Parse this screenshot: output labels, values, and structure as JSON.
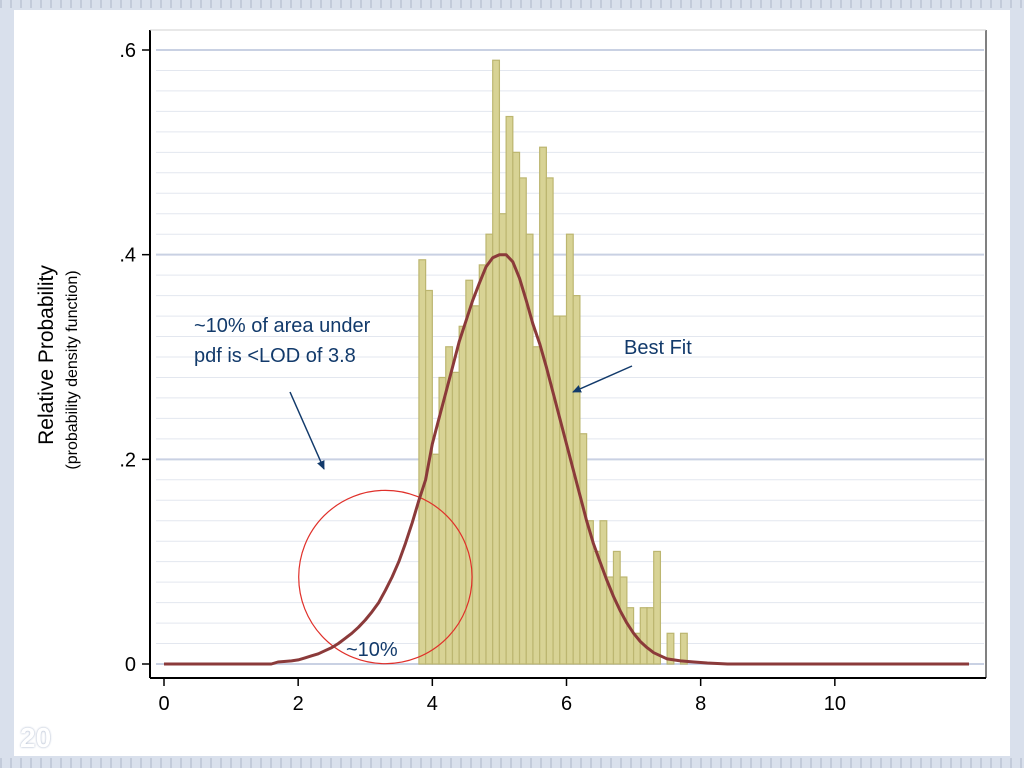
{
  "slide": {
    "number": "20"
  },
  "chart_data": {
    "type": "bar",
    "ylabel": "Relative Probability",
    "ylabel_sub": "(probability density function)",
    "xlim": [
      0,
      12
    ],
    "ylim": [
      0,
      0.6
    ],
    "x_ticks": [
      {
        "value": 0,
        "label": "0"
      },
      {
        "value": 2,
        "label": "2"
      },
      {
        "value": 4,
        "label": "4"
      },
      {
        "value": 6,
        "label": "6"
      },
      {
        "value": 8,
        "label": "8"
      },
      {
        "value": 10,
        "label": "10"
      }
    ],
    "y_ticks": [
      {
        "value": 0,
        "label": "0"
      },
      {
        "value": 0.2,
        "label": ".2"
      },
      {
        "value": 0.4,
        "label": ".4"
      },
      {
        "value": 0.6,
        "label": ".6"
      }
    ],
    "grid": true,
    "colors": {
      "bars": "#d8d395",
      "bar_edge": "#bcb670",
      "curve": "#8b3a3a",
      "circle": "#e0302a",
      "annotation": "#123a6b"
    },
    "histogram": {
      "bins": [
        {
          "x0": 3.8,
          "x1": 3.9,
          "y": 0.395
        },
        {
          "x0": 3.9,
          "x1": 4.0,
          "y": 0.365
        },
        {
          "x0": 4.0,
          "x1": 4.1,
          "y": 0.205
        },
        {
          "x0": 4.1,
          "x1": 4.2,
          "y": 0.28
        },
        {
          "x0": 4.2,
          "x1": 4.3,
          "y": 0.31
        },
        {
          "x0": 4.3,
          "x1": 4.4,
          "y": 0.285
        },
        {
          "x0": 4.4,
          "x1": 4.5,
          "y": 0.33
        },
        {
          "x0": 4.5,
          "x1": 4.6,
          "y": 0.375
        },
        {
          "x0": 4.6,
          "x1": 4.7,
          "y": 0.35
        },
        {
          "x0": 4.7,
          "x1": 4.8,
          "y": 0.39
        },
        {
          "x0": 4.8,
          "x1": 4.9,
          "y": 0.42
        },
        {
          "x0": 4.9,
          "x1": 5.0,
          "y": 0.59
        },
        {
          "x0": 5.0,
          "x1": 5.1,
          "y": 0.44
        },
        {
          "x0": 5.1,
          "x1": 5.2,
          "y": 0.535
        },
        {
          "x0": 5.2,
          "x1": 5.3,
          "y": 0.5
        },
        {
          "x0": 5.3,
          "x1": 5.4,
          "y": 0.475
        },
        {
          "x0": 5.4,
          "x1": 5.5,
          "y": 0.42
        },
        {
          "x0": 5.5,
          "x1": 5.6,
          "y": 0.31
        },
        {
          "x0": 5.6,
          "x1": 5.7,
          "y": 0.505
        },
        {
          "x0": 5.7,
          "x1": 5.8,
          "y": 0.475
        },
        {
          "x0": 5.8,
          "x1": 5.9,
          "y": 0.34
        },
        {
          "x0": 5.9,
          "x1": 6.0,
          "y": 0.34
        },
        {
          "x0": 6.0,
          "x1": 6.1,
          "y": 0.42
        },
        {
          "x0": 6.1,
          "x1": 6.2,
          "y": 0.36
        },
        {
          "x0": 6.2,
          "x1": 6.3,
          "y": 0.225
        },
        {
          "x0": 6.3,
          "x1": 6.4,
          "y": 0.14
        },
        {
          "x0": 6.4,
          "x1": 6.5,
          "y": 0.11
        },
        {
          "x0": 6.5,
          "x1": 6.6,
          "y": 0.14
        },
        {
          "x0": 6.6,
          "x1": 6.7,
          "y": 0.085
        },
        {
          "x0": 6.7,
          "x1": 6.8,
          "y": 0.11
        },
        {
          "x0": 6.8,
          "x1": 6.9,
          "y": 0.085
        },
        {
          "x0": 6.9,
          "x1": 7.0,
          "y": 0.055
        },
        {
          "x0": 7.0,
          "x1": 7.1,
          "y": 0.03
        },
        {
          "x0": 7.1,
          "x1": 7.2,
          "y": 0.055
        },
        {
          "x0": 7.2,
          "x1": 7.3,
          "y": 0.055
        },
        {
          "x0": 7.3,
          "x1": 7.4,
          "y": 0.11
        },
        {
          "x0": 7.4,
          "x1": 7.5,
          "y": 0.0
        },
        {
          "x0": 7.5,
          "x1": 7.6,
          "y": 0.03
        },
        {
          "x0": 7.6,
          "x1": 7.7,
          "y": 0.0
        },
        {
          "x0": 7.7,
          "x1": 7.8,
          "y": 0.03
        }
      ]
    },
    "curve": {
      "name": "Best Fit",
      "points": [
        [
          0.0,
          0.0
        ],
        [
          1.6,
          0.0
        ],
        [
          1.7,
          0.002
        ],
        [
          1.9,
          0.003
        ],
        [
          2.0,
          0.004
        ],
        [
          2.1,
          0.006
        ],
        [
          2.2,
          0.008
        ],
        [
          2.3,
          0.01
        ],
        [
          2.4,
          0.013
        ],
        [
          2.5,
          0.016
        ],
        [
          2.6,
          0.02
        ],
        [
          2.7,
          0.025
        ],
        [
          2.8,
          0.03
        ],
        [
          2.9,
          0.036
        ],
        [
          3.0,
          0.043
        ],
        [
          3.1,
          0.051
        ],
        [
          3.2,
          0.06
        ],
        [
          3.3,
          0.072
        ],
        [
          3.4,
          0.085
        ],
        [
          3.5,
          0.1
        ],
        [
          3.6,
          0.118
        ],
        [
          3.7,
          0.138
        ],
        [
          3.8,
          0.16
        ],
        [
          3.9,
          0.18
        ],
        [
          4.0,
          0.215
        ],
        [
          4.1,
          0.24
        ],
        [
          4.2,
          0.265
        ],
        [
          4.3,
          0.29
        ],
        [
          4.4,
          0.315
        ],
        [
          4.5,
          0.335
        ],
        [
          4.6,
          0.355
        ],
        [
          4.7,
          0.372
        ],
        [
          4.8,
          0.388
        ],
        [
          4.9,
          0.397
        ],
        [
          5.0,
          0.4
        ],
        [
          5.1,
          0.4
        ],
        [
          5.2,
          0.393
        ],
        [
          5.3,
          0.377
        ],
        [
          5.4,
          0.355
        ],
        [
          5.5,
          0.332
        ],
        [
          5.6,
          0.313
        ],
        [
          5.7,
          0.29
        ],
        [
          5.8,
          0.265
        ],
        [
          5.9,
          0.24
        ],
        [
          6.0,
          0.215
        ],
        [
          6.1,
          0.19
        ],
        [
          6.2,
          0.165
        ],
        [
          6.3,
          0.14
        ],
        [
          6.4,
          0.118
        ],
        [
          6.5,
          0.1
        ],
        [
          6.6,
          0.082
        ],
        [
          6.7,
          0.066
        ],
        [
          6.8,
          0.052
        ],
        [
          6.9,
          0.04
        ],
        [
          7.0,
          0.03
        ],
        [
          7.1,
          0.022
        ],
        [
          7.2,
          0.016
        ],
        [
          7.3,
          0.011
        ],
        [
          7.4,
          0.008
        ],
        [
          7.5,
          0.005
        ],
        [
          7.7,
          0.003
        ],
        [
          7.9,
          0.002
        ],
        [
          8.1,
          0.001
        ],
        [
          8.4,
          0.0
        ],
        [
          12.0,
          0.0
        ]
      ]
    },
    "annotations": [
      {
        "id": "lod-note-line1",
        "text": "~10% of area under"
      },
      {
        "id": "lod-note-line2",
        "text": "pdf is <LOD of 3.8"
      },
      {
        "id": "best-fit-label",
        "text": "Best Fit"
      },
      {
        "id": "tail-percent",
        "text": "~10%"
      }
    ],
    "highlight_circle": {
      "cx": 3.3,
      "cy": 0.085,
      "r": 1.9
    }
  }
}
